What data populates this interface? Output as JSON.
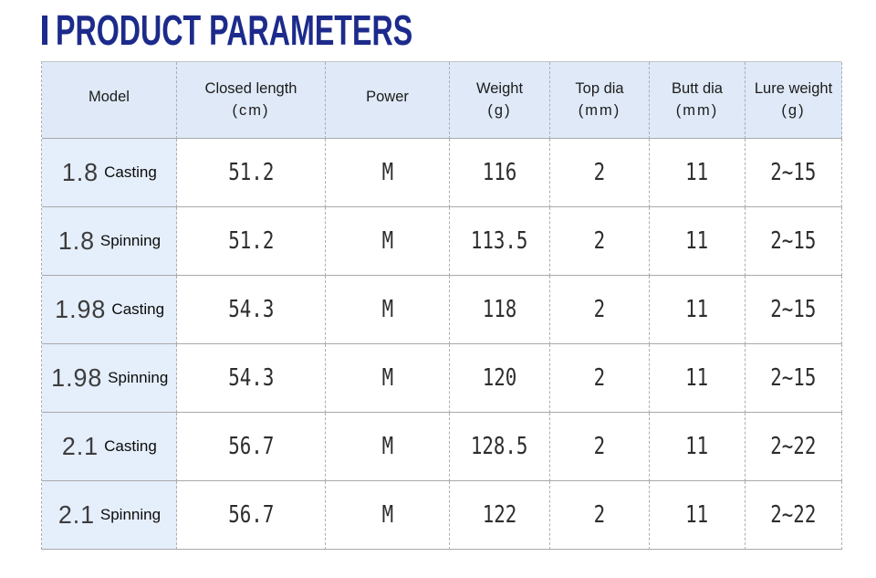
{
  "title": {
    "text": "PRODUCT PARAMETERS"
  },
  "colors": {
    "accent": "#1c2b8b",
    "header_bg": "#dfe9f7",
    "model_bg": "#e5eefb",
    "h_border": "#a9a9a9",
    "v_border": "#a8aeb4",
    "top_border": "#c3c3c3",
    "text_dark": "#1c1c1c",
    "num_color": "#2d2d2d",
    "size_color": "#3d3d3d"
  },
  "table": {
    "columns": [
      {
        "label": "Model",
        "unit": ""
      },
      {
        "label": "Closed length",
        "unit": "(cm)"
      },
      {
        "label": "Power",
        "unit": ""
      },
      {
        "label": "Weight",
        "unit": "(g)"
      },
      {
        "label": "Top dia",
        "unit": "(mm)"
      },
      {
        "label": "Butt dia",
        "unit": "(mm)"
      },
      {
        "label": "Lure weight",
        "unit": "(g)"
      }
    ],
    "rows": [
      {
        "model_size": "1.8",
        "model_type": "Casting",
        "closed_length": "51.2",
        "power": "M",
        "weight": "116",
        "top_dia": "2",
        "butt_dia": "11",
        "lure_weight": "2~15"
      },
      {
        "model_size": "1.8",
        "model_type": "Spinning",
        "closed_length": "51.2",
        "power": "M",
        "weight": "113.5",
        "top_dia": "2",
        "butt_dia": "11",
        "lure_weight": "2~15"
      },
      {
        "model_size": "1.98",
        "model_type": "Casting",
        "closed_length": "54.3",
        "power": "M",
        "weight": "118",
        "top_dia": "2",
        "butt_dia": "11",
        "lure_weight": "2~15"
      },
      {
        "model_size": "1.98",
        "model_type": "Spinning",
        "closed_length": "54.3",
        "power": "M",
        "weight": "120",
        "top_dia": "2",
        "butt_dia": "11",
        "lure_weight": "2~15"
      },
      {
        "model_size": "2.1",
        "model_type": "Casting",
        "closed_length": "56.7",
        "power": "M",
        "weight": "128.5",
        "top_dia": "2",
        "butt_dia": "11",
        "lure_weight": "2~22"
      },
      {
        "model_size": "2.1",
        "model_type": "Spinning",
        "closed_length": "56.7",
        "power": "M",
        "weight": "122",
        "top_dia": "2",
        "butt_dia": "11",
        "lure_weight": "2~22"
      }
    ]
  }
}
